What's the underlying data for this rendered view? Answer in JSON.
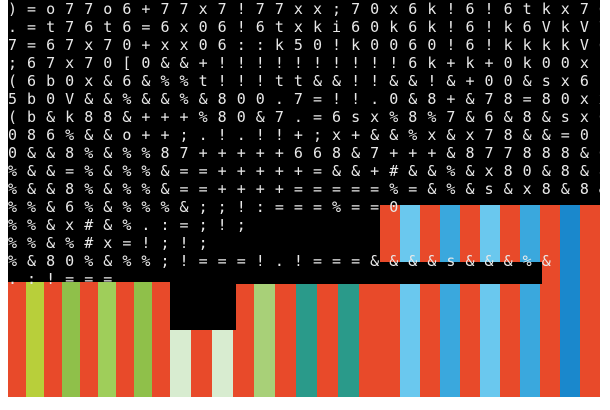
{
  "colors": {
    "background": "#000000",
    "glyph": "#e8e8e8",
    "palette_left": [
      "#e84a2a",
      "#b8cf3a",
      "#8fc04a",
      "#e84a2a",
      "#9fce5a"
    ],
    "palette_mid": [
      "#d8ecd0",
      "#a8d078",
      "#2a9a8a",
      "#e84a2a"
    ],
    "palette_right": [
      "#6ac8ee",
      "#e84a2a",
      "#3aa8dd",
      "#1a88cc",
      "#e84a2a"
    ]
  },
  "glyph_rows": [
    ") = o 7 7 o 6 + 7 7 x 7 ! 7 7 x x ; 7 0 x 6 k ! 6 ! 6 t k x 7 6",
    ". = t 7 6 t 6 = 6 x 0 6 ! 6 t x k i 6 0 k 6 k ! 6 ! k 6 V k V 7",
    "7 = 6 7 x 7 0 + x x 0 6 : : k 5 0 ! k 0 0 6 0 ! 6 ! k k k k V 6",
    "; 6 7 x 7 0 [ 0 & & + ! ! ! ! ! ! ! ! ! ! 6 k + k + 0 k 0 0 x k",
    "( 6 b 0 x & 6 & % % t ! ! ! t t & & ! ! & & ! & + 0 0 & s x 6",
    "5 b 0 V & & % & & % & 8 0 0 . 7 = ! ! . 0 & 8 + & 7 8 = 8 0 x x",
    "( b & k 8 8 & + + + % 8 0 & 7 . = 6 s x % 8 % 7 & 6 & 8 & s x 0",
    "0 8 6 % & & o + + ; . ! . ! ! + ; x + & & % x & x 7 8 & & = 0",
    "0 & & 8 % & % % 8 7 + + + + + 6 6 8 & 7 + + + & 8 7 7 8 8 8 & 0",
    "% & & = % & % % & = = + + + + + = & & + # & & % & x 8 0 & 8 & 8",
    "% & & 8 % & % % & = = + + + + = = = = = % = & % & s & x 8 & 8 & x",
    "% % & 6 % & % % % & ; ; ! : = = = % = = 0",
    "% % & x # & % . : = ; ! ;",
    "% % & % # x = ! ; ! ;",
    "% & 8 0 % & % % ; ! = = = ! . ! = = = & & & & s & & & % &",
    ". : ! = = =",
    ". . . = = . =",
    ": : . = ="
  ]
}
